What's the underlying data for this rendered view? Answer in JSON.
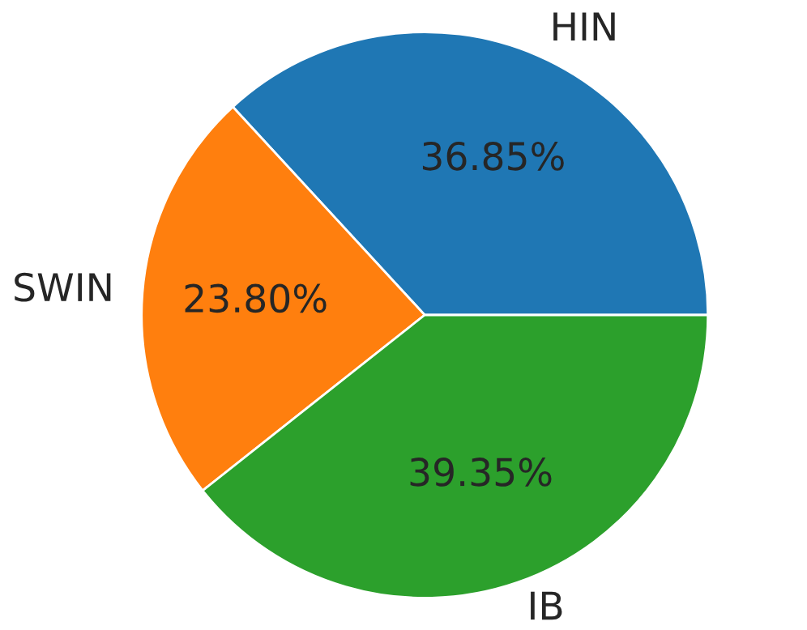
{
  "chart_data": {
    "type": "pie",
    "categories": [
      "HIN",
      "SWIN",
      "IB"
    ],
    "values": [
      36.85,
      23.8,
      39.35
    ],
    "colors": [
      "#1f77b4",
      "#ff7f0e",
      "#2ca02c"
    ],
    "value_labels": [
      "36.85%",
      "23.80%",
      "39.35%"
    ]
  }
}
